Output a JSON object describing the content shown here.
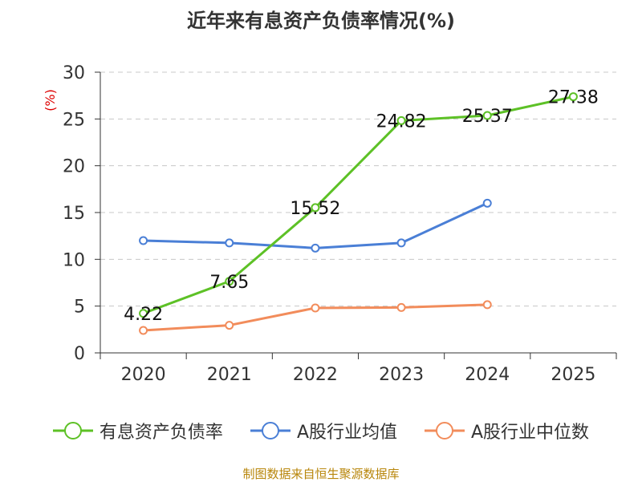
{
  "title": "近年来有息资产负债率情况(%)",
  "source": "制图数据来自恒生聚源数据库",
  "chart_data": {
    "type": "line",
    "title": "近年来有息资产负债率情况(%)",
    "ylabel": "(%)",
    "ylim": [
      0,
      30
    ],
    "yticks": [
      "0",
      "5",
      "10",
      "15",
      "20",
      "25",
      "30"
    ],
    "grid": true,
    "legend_position": "bottom",
    "categories": [
      "2020",
      "2021",
      "2022",
      "2023",
      "2024",
      "2025"
    ],
    "series": [
      {
        "name": "有息资产负债率",
        "color": "#5dc126",
        "values": [
          4.22,
          7.65,
          15.52,
          24.82,
          25.37,
          27.38
        ],
        "labels": [
          "4.22",
          "7.65",
          "15.52",
          "24.82",
          "25.37",
          "27.38"
        ]
      },
      {
        "name": "A股行业均值",
        "color": "#4a7fd6",
        "values": [
          12.0,
          11.75,
          11.2,
          11.75,
          16.0,
          null
        ]
      },
      {
        "name": "A股行业中位数",
        "color": "#f28c5b",
        "values": [
          2.4,
          2.95,
          4.8,
          4.85,
          5.15,
          null
        ]
      }
    ]
  }
}
